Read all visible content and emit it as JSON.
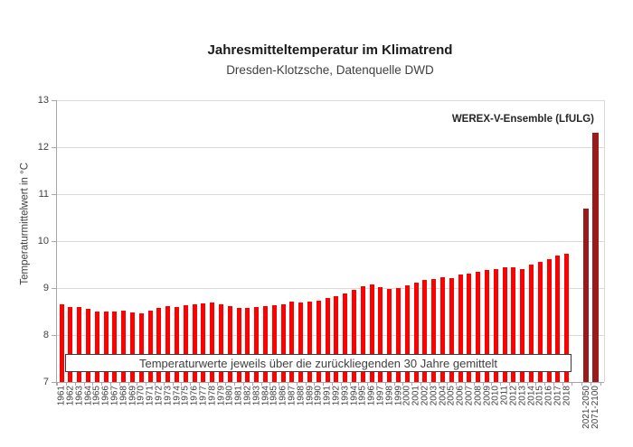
{
  "header": {
    "title": "Jahresmitteltemperatur im Klimatrend",
    "subtitle": "Dresden-Klotzsche, Datenquelle DWD"
  },
  "annotation": "WEREX-V-Ensemble (LfULG)",
  "footnote": "Temperaturwerte jeweils über die zurückliegenden 30 Jahre gemittelt",
  "colors": {
    "bar_historical": "#ff0000",
    "bar_projection": "#9a1b1b",
    "gridline": "#d9d9d9",
    "axis": "#a6a6a6",
    "text": "#404040"
  },
  "chart_data": {
    "type": "bar",
    "title": "Jahresmitteltemperatur im Klimatrend",
    "subtitle": "Dresden-Klotzsche, Datenquelle DWD",
    "ylabel": "Temperaturmittelwert in °C",
    "ylim": [
      7,
      13
    ],
    "yticks": [
      7,
      8,
      9,
      10,
      11,
      12,
      13
    ],
    "grid": "horizontal",
    "legend_position": "none",
    "annotation": "WEREX-V-Ensemble (LfULG)",
    "series": [
      {
        "name": "Temperaturwerte jeweils über die zurückliegenden 30 Jahre gemittelt",
        "color": "#ff0000",
        "categories": [
          "1961",
          "1962",
          "1963",
          "1964",
          "1965",
          "1966",
          "1967",
          "1968",
          "1969",
          "1970",
          "1971",
          "1972",
          "1973",
          "1974",
          "1975",
          "1976",
          "1977",
          "1978",
          "1979",
          "1980",
          "1981",
          "1982",
          "1983",
          "1984",
          "1985",
          "1986",
          "1987",
          "1988",
          "1989",
          "1990",
          "1991",
          "1992",
          "1993",
          "1994",
          "1995",
          "1996",
          "1997",
          "1998",
          "1999",
          "2000",
          "2001",
          "2002",
          "2003",
          "2004",
          "2005",
          "2006",
          "2007",
          "2008",
          "2009",
          "2010",
          "2011",
          "2012",
          "2013",
          "2014",
          "2015",
          "2016",
          "2017",
          "2018"
        ],
        "values": [
          8.65,
          8.6,
          8.6,
          8.55,
          8.5,
          8.5,
          8.5,
          8.52,
          8.48,
          8.46,
          8.52,
          8.58,
          8.62,
          8.6,
          8.63,
          8.66,
          8.68,
          8.7,
          8.66,
          8.62,
          8.58,
          8.58,
          8.6,
          8.62,
          8.64,
          8.66,
          8.71,
          8.7,
          8.72,
          8.74,
          8.78,
          8.83,
          8.89,
          8.96,
          9.03,
          9.08,
          9.01,
          8.99,
          9.0,
          9.05,
          9.11,
          9.18,
          9.2,
          9.23,
          9.22,
          9.28,
          9.3,
          9.35,
          9.38,
          9.4,
          9.45,
          9.44,
          9.4,
          9.5,
          9.55,
          9.62,
          9.7,
          9.74
        ]
      },
      {
        "name": "WEREX-V-Ensemble (LfULG)",
        "color": "#9a1b1b",
        "categories": [
          "2021-2050",
          "2071-2100"
        ],
        "values": [
          10.7,
          12.3
        ]
      }
    ]
  }
}
